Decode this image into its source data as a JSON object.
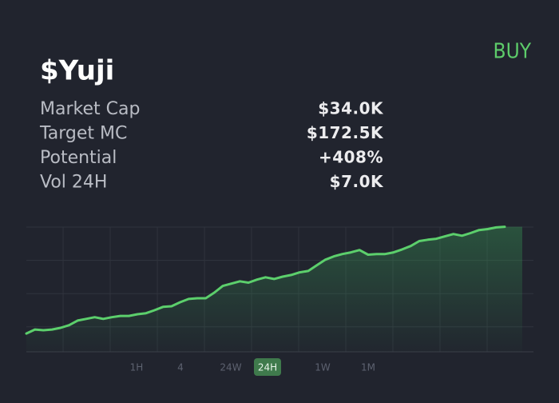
{
  "header": {
    "title": "$Yuji",
    "action": "BUY"
  },
  "stats": [
    {
      "label": "Market Cap",
      "value": "$34.0K"
    },
    {
      "label": "Target MC",
      "value": "$172.5K"
    },
    {
      "label": "Potential",
      "value": "+408%",
      "color": "#3fc46b"
    },
    {
      "label": "Vol 24H",
      "value": "$7.0K"
    }
  ],
  "chart_data": {
    "type": "line",
    "color": "#5ccf6c",
    "ylim": [
      -0.75,
      3
    ],
    "yticks": [
      0,
      1,
      2,
      3
    ],
    "grid": true,
    "values": [
      -0.2,
      -0.08,
      -0.1,
      -0.08,
      -0.03,
      0.05,
      0.19,
      0.24,
      0.29,
      0.24,
      0.29,
      0.33,
      0.33,
      0.38,
      0.41,
      0.5,
      0.6,
      0.62,
      0.74,
      0.84,
      0.86,
      0.86,
      1.03,
      1.23,
      1.3,
      1.37,
      1.33,
      1.42,
      1.49,
      1.44,
      1.51,
      1.56,
      1.64,
      1.68,
      1.85,
      2.02,
      2.12,
      2.19,
      2.24,
      2.31,
      2.17,
      2.19,
      2.19,
      2.24,
      2.33,
      2.43,
      2.58,
      2.62,
      2.65,
      2.72,
      2.79,
      2.74,
      2.82,
      2.91,
      2.94,
      2.99,
      3.01
    ],
    "timeframes": [
      "1H",
      "4",
      "24W",
      "24H",
      "1W",
      "1M"
    ],
    "selected_timeframe": 3
  }
}
